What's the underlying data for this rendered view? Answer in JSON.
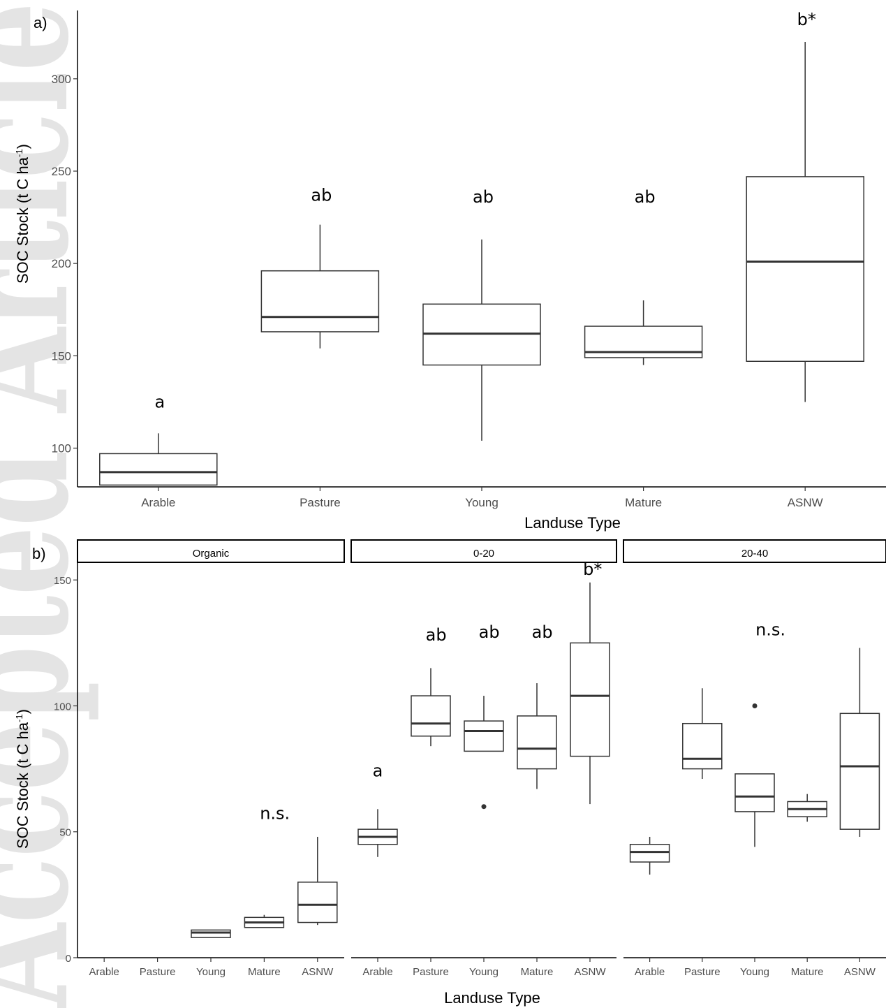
{
  "watermark": "Accepted Article",
  "chart_data": [
    {
      "type": "box",
      "panel_label": "a)",
      "xlabel": "Landuse Type",
      "ylabel": "SOC Stock (t C ha",
      "ylabel_sup": "-1",
      "ylabel_end": ")",
      "ylim": [
        79,
        337
      ],
      "yticks": [
        100,
        150,
        200,
        250,
        300
      ],
      "grid": false,
      "categories": [
        "Arable",
        "Pasture",
        "Young",
        "Mature",
        "ASNW"
      ],
      "boxes": [
        {
          "min": 80,
          "q1": 80,
          "median": 87,
          "q3": 97,
          "max": 108,
          "outliers": []
        },
        {
          "min": 154,
          "q1": 163,
          "median": 171,
          "q3": 196,
          "max": 221,
          "outliers": []
        },
        {
          "min": 104,
          "q1": 145,
          "median": 162,
          "q3": 178,
          "max": 213,
          "outliers": []
        },
        {
          "min": 145,
          "q1": 149,
          "median": 152,
          "q3": 166,
          "max": 180,
          "outliers": []
        },
        {
          "min": 125,
          "q1": 147,
          "median": 201,
          "q3": 247,
          "max": 320,
          "outliers": []
        }
      ],
      "annotations": [
        {
          "category": "Arable",
          "label": "a",
          "y": 122
        },
        {
          "category": "Pasture",
          "label": "ab",
          "y": 234
        },
        {
          "category": "Young",
          "label": "ab",
          "y": 233
        },
        {
          "category": "Mature",
          "label": "ab",
          "y": 233
        },
        {
          "category": "ASNW",
          "label": "b*",
          "y": 329
        }
      ]
    },
    {
      "type": "box",
      "panel_label": "b)",
      "xlabel": "Landuse Type",
      "ylabel": "SOC Stock (t C ha",
      "ylabel_sup": "-1",
      "ylabel_end": ")",
      "ylim": [
        0,
        157
      ],
      "yticks": [
        0,
        50,
        100,
        150
      ],
      "grid": false,
      "facets": [
        {
          "name": "Organic",
          "categories": [
            "Arable",
            "Pasture",
            "Young",
            "Mature",
            "ASNW"
          ],
          "boxes": [
            null,
            null,
            {
              "min": 8,
              "q1": 8,
              "median": 10,
              "q3": 11,
              "max": 11,
              "outliers": []
            },
            {
              "min": 12,
              "q1": 12,
              "median": 14,
              "q3": 16,
              "max": 17,
              "outliers": []
            },
            {
              "min": 13,
              "q1": 14,
              "median": 21,
              "q3": 30,
              "max": 48,
              "outliers": []
            }
          ],
          "annotations": [
            {
              "label": "n.s.",
              "x_category_index": 3.2,
              "y": 55
            }
          ]
        },
        {
          "name": "0-20",
          "categories": [
            "Arable",
            "Pasture",
            "Young",
            "Mature",
            "ASNW"
          ],
          "boxes": [
            {
              "min": 40,
              "q1": 45,
              "median": 48,
              "q3": 51,
              "max": 59,
              "outliers": []
            },
            {
              "min": 84,
              "q1": 88,
              "median": 93,
              "q3": 104,
              "max": 115,
              "outliers": []
            },
            {
              "min": 82,
              "q1": 82,
              "median": 90,
              "q3": 94,
              "max": 104,
              "outliers": [
                60
              ]
            },
            {
              "min": 67,
              "q1": 75,
              "median": 83,
              "q3": 96,
              "max": 109,
              "outliers": []
            },
            {
              "min": 61,
              "q1": 80,
              "median": 104,
              "q3": 125,
              "max": 149,
              "outliers": []
            }
          ],
          "annotations": [
            {
              "label": "a",
              "x_category_index": 0,
              "y": 72
            },
            {
              "label": "ab",
              "x_category_index": 1.1,
              "y": 126
            },
            {
              "label": "ab",
              "x_category_index": 2.1,
              "y": 127
            },
            {
              "label": "ab",
              "x_category_index": 3.1,
              "y": 127
            },
            {
              "label": "b*",
              "x_category_index": 4.05,
              "y": 152
            }
          ]
        },
        {
          "name": "20-40",
          "categories": [
            "Arable",
            "Pasture",
            "Young",
            "Mature",
            "ASNW"
          ],
          "boxes": [
            {
              "min": 33,
              "q1": 38,
              "median": 42,
              "q3": 45,
              "max": 48,
              "outliers": []
            },
            {
              "min": 71,
              "q1": 75,
              "median": 79,
              "q3": 93,
              "max": 107,
              "outliers": []
            },
            {
              "min": 44,
              "q1": 58,
              "median": 64,
              "q3": 73,
              "max": 73,
              "outliers": [
                100
              ]
            },
            {
              "min": 54,
              "q1": 56,
              "median": 59,
              "q3": 62,
              "max": 65,
              "outliers": []
            },
            {
              "min": 48,
              "q1": 51,
              "median": 76,
              "q3": 97,
              "max": 123,
              "outliers": []
            }
          ],
          "annotations": [
            {
              "label": "n.s.",
              "x_category_index": 2.3,
              "y": 128
            }
          ]
        }
      ]
    }
  ]
}
